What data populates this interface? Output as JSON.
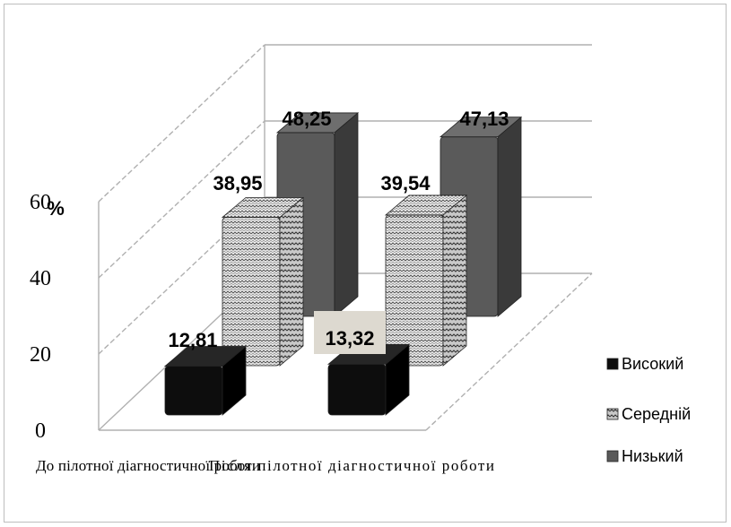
{
  "chart_data": {
    "type": "bar",
    "categories": [
      "До пілотної діагностичної роботи",
      "Після пілотної діагностичної роботи"
    ],
    "category_labels_overlap": true,
    "series": [
      {
        "name": "Високий",
        "values": [
          12.81,
          13.32
        ]
      },
      {
        "name": "Середній",
        "values": [
          38.95,
          39.54
        ]
      },
      {
        "name": "Низький",
        "values": [
          48.25,
          47.13
        ]
      }
    ],
    "data_labels": [
      [
        "12,81",
        "13,32"
      ],
      [
        "38,95",
        "39,54"
      ],
      [
        "48,25",
        "47,13"
      ]
    ],
    "ylabel": "%",
    "yticks": [
      "0",
      "20",
      "40",
      "60"
    ],
    "ylim": [
      0,
      60
    ],
    "style": "3d-columns",
    "legend_position": "right",
    "colors": {
      "Високий": "#0d0d0d",
      "Середній": "#d8d8d8",
      "Низький": "#5a5a5a",
      "grid": "#b0b0b0"
    }
  }
}
